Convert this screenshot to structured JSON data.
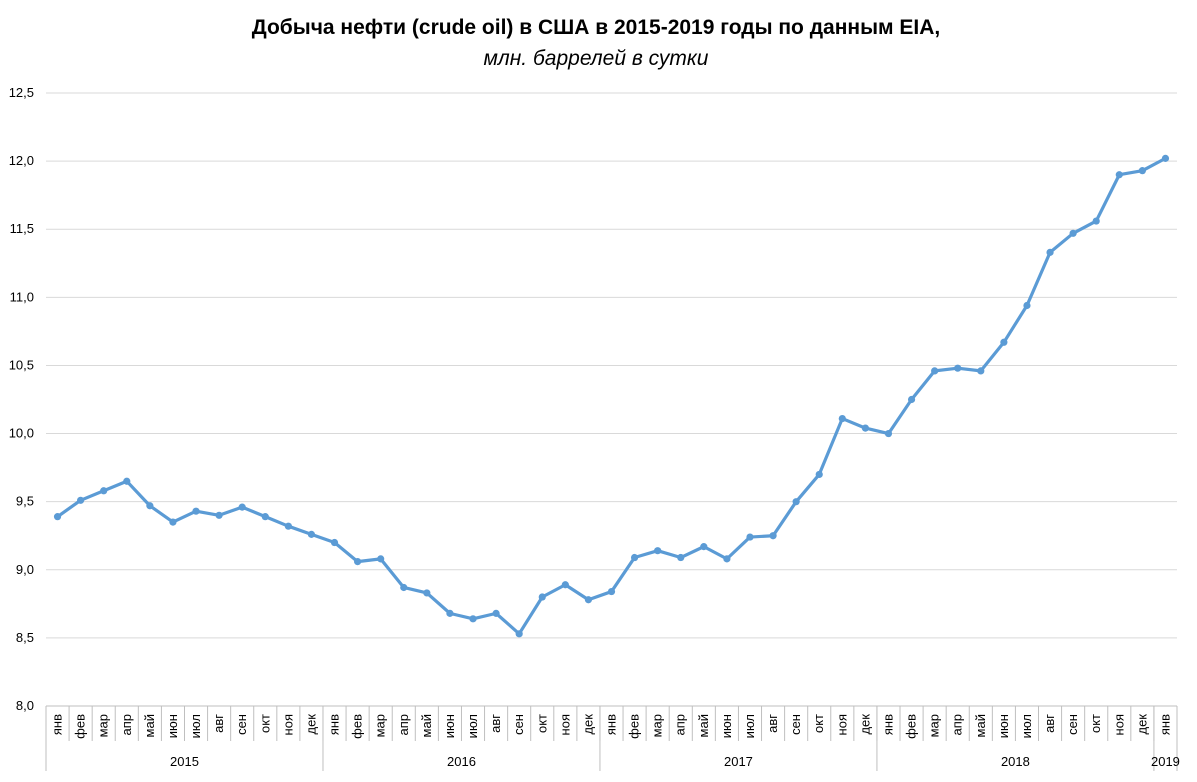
{
  "chart_data": {
    "type": "line",
    "title": "Добыча нефти (crude oil) в США в 2015-2019 годы по данным EIA,",
    "subtitle": "млн. баррелей в сутки",
    "ylim": [
      8.0,
      12.5
    ],
    "y_ticks": [
      "8,0",
      "8,5",
      "9,0",
      "9,5",
      "10,0",
      "10,5",
      "11,0",
      "11,5",
      "12,0",
      "12,5"
    ],
    "y_tick_values": [
      8.0,
      8.5,
      9.0,
      9.5,
      10.0,
      10.5,
      11.0,
      11.5,
      12.0,
      12.5
    ],
    "grid": true,
    "line_color": "#5B9BD5",
    "categories": [
      "янв",
      "фев",
      "мар",
      "апр",
      "май",
      "июн",
      "июл",
      "авг",
      "сен",
      "окт",
      "ноя",
      "дек",
      "янв",
      "фев",
      "мар",
      "апр",
      "май",
      "июн",
      "июл",
      "авг",
      "сен",
      "окт",
      "ноя",
      "дек",
      "янв",
      "фев",
      "мар",
      "апр",
      "май",
      "июн",
      "июл",
      "авг",
      "сен",
      "окт",
      "ноя",
      "дек",
      "янв",
      "фев",
      "мар",
      "апр",
      "май",
      "июн",
      "июл",
      "авг",
      "сен",
      "окт",
      "ноя",
      "дек",
      "янв"
    ],
    "year_groups": [
      {
        "label": "2015",
        "count": 12
      },
      {
        "label": "2016",
        "count": 12
      },
      {
        "label": "2017",
        "count": 12
      },
      {
        "label": "2018",
        "count": 12
      },
      {
        "label": "2019",
        "count": 1
      }
    ],
    "series": [
      {
        "values": [
          9.39,
          9.51,
          9.58,
          9.65,
          9.47,
          9.35,
          9.43,
          9.4,
          9.46,
          9.39,
          9.32,
          9.26,
          9.2,
          9.06,
          9.08,
          8.87,
          8.83,
          8.68,
          8.64,
          8.68,
          8.53,
          8.8,
          8.89,
          8.78,
          8.84,
          9.09,
          9.14,
          9.09,
          9.17,
          9.08,
          9.24,
          9.25,
          9.5,
          9.7,
          10.11,
          10.04,
          10.0,
          10.25,
          10.46,
          10.48,
          10.46,
          10.67,
          10.94,
          11.33,
          11.47,
          11.56,
          11.9,
          11.93,
          12.02
        ]
      }
    ]
  }
}
